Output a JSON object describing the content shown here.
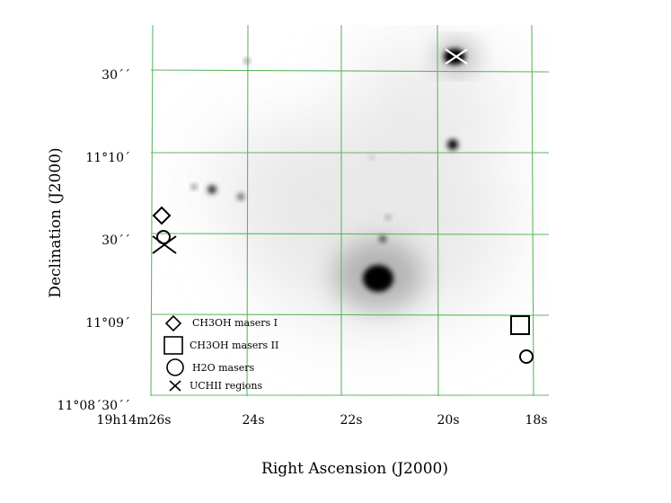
{
  "axes": {
    "xlabel": "Right Ascension (J2000)",
    "ylabel": "Declination (J2000)",
    "x_ticks": [
      "19h14m26s",
      "24s",
      "22s",
      "20s",
      "18s"
    ],
    "y_ticks": [
      "30´´",
      "11°10´",
      "30´´",
      "11°09´",
      "11°08´30´´"
    ]
  },
  "legend": {
    "items": [
      {
        "symbol": "diamond",
        "label": "CH3OH masers I"
      },
      {
        "symbol": "square",
        "label": "CH3OH masers II"
      },
      {
        "symbol": "circle",
        "label": "H2O masers"
      },
      {
        "symbol": "cross",
        "label": "UCHII regions"
      }
    ]
  },
  "colors": {
    "grid": "#5fb85f",
    "markers": "#000000",
    "source_marker_white": "#ffffff"
  }
}
